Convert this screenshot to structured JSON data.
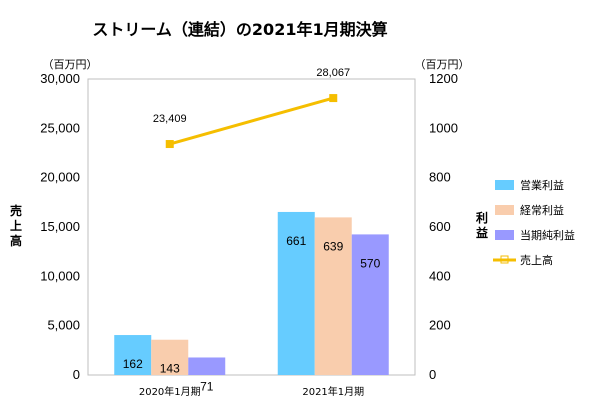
{
  "chart_data": {
    "type": "bar",
    "title": "ストリーム（連結）の2021年1月期決算",
    "categories": [
      "2020年1月期",
      "2021年1月期"
    ],
    "y_left": {
      "label": "売上高",
      "unit": "（百万円）",
      "min": 0,
      "max": 30000,
      "ticks": [
        "0",
        "5,000",
        "10,000",
        "15,000",
        "20,000",
        "25,000",
        "30,000"
      ]
    },
    "y_right": {
      "label": "利益",
      "unit": "（百万円）",
      "min": 0,
      "max": 1200,
      "ticks": [
        "0",
        "200",
        "400",
        "600",
        "800",
        "1000",
        "1200"
      ]
    },
    "series": [
      {
        "name": "営業利益",
        "kind": "bar",
        "axis": "right",
        "color": "#66CCFF",
        "values": [
          162,
          661
        ],
        "labels": [
          "162",
          "661"
        ]
      },
      {
        "name": "経常利益",
        "kind": "bar",
        "axis": "right",
        "color": "#F9CDAD",
        "values": [
          143,
          639
        ],
        "labels": [
          "143",
          "639"
        ]
      },
      {
        "name": "当期純利益",
        "kind": "bar",
        "axis": "right",
        "color": "#9999FF",
        "values": [
          71,
          570
        ],
        "labels": [
          "71",
          "570"
        ]
      },
      {
        "name": "売上高",
        "kind": "line",
        "axis": "left",
        "color": "#F5BE00",
        "values": [
          23409,
          28067
        ],
        "labels": [
          "23,409",
          "28,067"
        ]
      }
    ],
    "legend_position": "right"
  }
}
